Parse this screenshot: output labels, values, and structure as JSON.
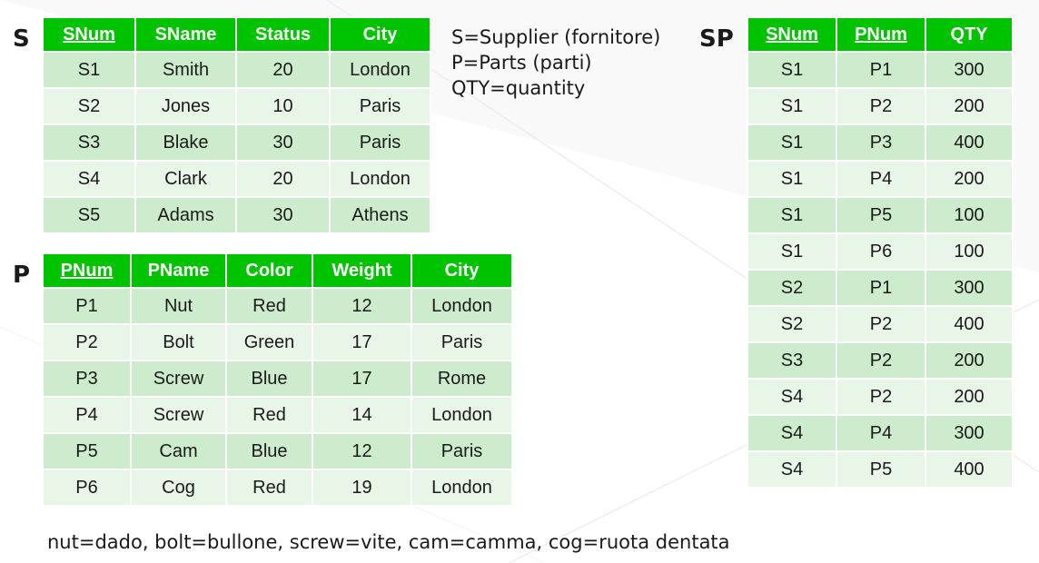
{
  "table_s": {
    "label": "S",
    "headers": [
      "SNum",
      "SName",
      "Status",
      "City"
    ],
    "rows": [
      [
        "S1",
        "Smith",
        "20",
        "London"
      ],
      [
        "S2",
        "Jones",
        "10",
        "Paris"
      ],
      [
        "S3",
        "Blake",
        "30",
        "Paris"
      ],
      [
        "S4",
        "Clark",
        "20",
        "London"
      ],
      [
        "S5",
        "Adams",
        "30",
        "Athens"
      ]
    ]
  },
  "table_p": {
    "label": "P",
    "headers": [
      "PNum",
      "PName",
      "Color",
      "Weight",
      "City"
    ],
    "rows": [
      [
        "P1",
        "Nut",
        "Red",
        "12",
        "London"
      ],
      [
        "P2",
        "Bolt",
        "Green",
        "17",
        "Paris"
      ],
      [
        "P3",
        "Screw",
        "Blue",
        "17",
        "Rome"
      ],
      [
        "P4",
        "Screw",
        "Red",
        "14",
        "London"
      ],
      [
        "P5",
        "Cam",
        "Blue",
        "12",
        "Paris"
      ],
      [
        "P6",
        "Cog",
        "Red",
        "19",
        "London"
      ]
    ]
  },
  "table_sp": {
    "label": "SP",
    "headers": [
      "SNum",
      "PNum",
      "QTY"
    ],
    "rows": [
      [
        "S1",
        "P1",
        "300"
      ],
      [
        "S1",
        "P2",
        "200"
      ],
      [
        "S1",
        "P3",
        "400"
      ],
      [
        "S1",
        "P4",
        "200"
      ],
      [
        "S1",
        "P5",
        "100"
      ],
      [
        "S1",
        "P6",
        "100"
      ],
      [
        "S2",
        "P1",
        "300"
      ],
      [
        "S2",
        "P2",
        "400"
      ],
      [
        "S3",
        "P2",
        "200"
      ],
      [
        "S4",
        "P2",
        "200"
      ],
      [
        "S4",
        "P4",
        "300"
      ],
      [
        "S4",
        "P5",
        "400"
      ]
    ]
  },
  "legend": [
    "S=Supplier (fornitore)",
    "P=Parts (parti)",
    "QTY=quantity"
  ],
  "translations": "nut=dado, bolt=bullone, screw=vite, cam=camma, cog=ruota dentata",
  "colors": {
    "header": "#00c300",
    "row_odd": "#cdeccd",
    "row_even": "#e8f6e8"
  }
}
